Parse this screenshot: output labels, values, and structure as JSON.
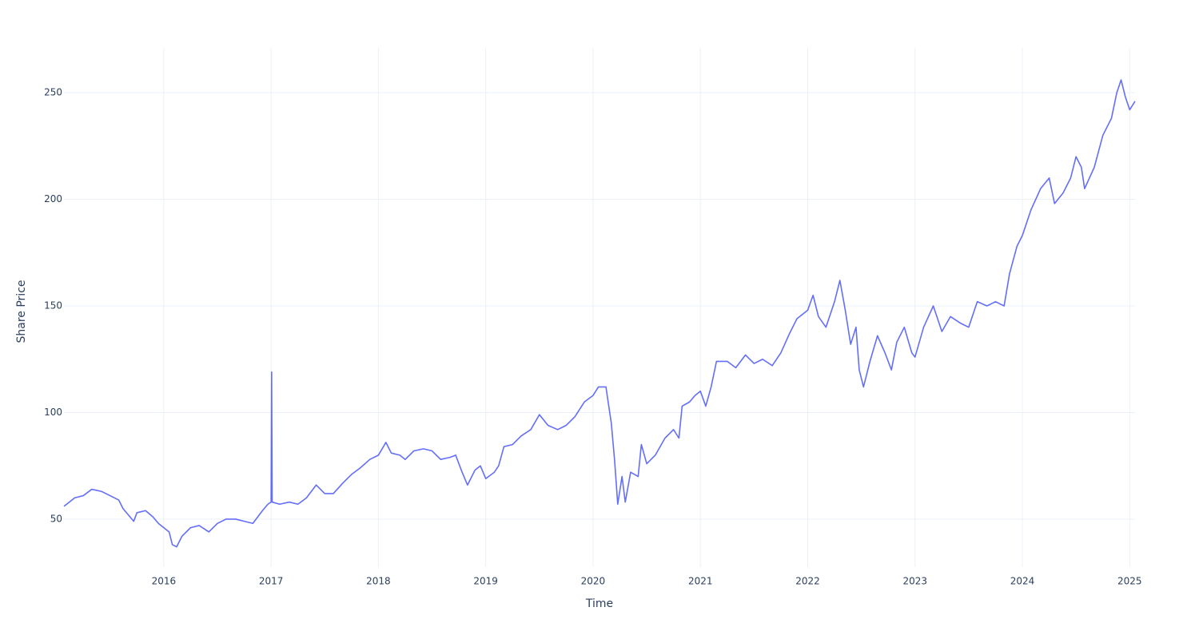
{
  "chart_data": {
    "type": "line",
    "x_label": "Time",
    "y_label": "Share Price",
    "color": "#636efa",
    "grid": true,
    "xlim": [
      2015.07,
      2025.05
    ],
    "xticks": [
      2016,
      2017,
      2018,
      2019,
      2020,
      2021,
      2022,
      2023,
      2024,
      2025
    ],
    "ylim": [
      27.5,
      271
    ],
    "yticks": [
      50,
      100,
      150,
      200,
      250
    ],
    "x": [
      2015.07,
      2015.12,
      2015.17,
      2015.25,
      2015.33,
      2015.42,
      2015.5,
      2015.58,
      2015.62,
      2015.67,
      2015.72,
      2015.75,
      2015.83,
      2015.9,
      2015.95,
      2016.0,
      2016.05,
      2016.08,
      2016.12,
      2016.17,
      2016.25,
      2016.33,
      2016.42,
      2016.5,
      2016.58,
      2016.67,
      2016.75,
      2016.83,
      2016.92,
      2016.97,
      2017.0,
      2017.005,
      2017.01,
      2017.08,
      2017.17,
      2017.25,
      2017.33,
      2017.42,
      2017.5,
      2017.58,
      2017.67,
      2017.75,
      2017.83,
      2017.92,
      2018.0,
      2018.07,
      2018.12,
      2018.2,
      2018.25,
      2018.33,
      2018.42,
      2018.5,
      2018.58,
      2018.67,
      2018.72,
      2018.78,
      2018.83,
      2018.9,
      2018.95,
      2019.0,
      2019.08,
      2019.12,
      2019.17,
      2019.25,
      2019.33,
      2019.42,
      2019.5,
      2019.58,
      2019.67,
      2019.75,
      2019.83,
      2019.92,
      2020.0,
      2020.05,
      2020.12,
      2020.17,
      2020.2,
      2020.23,
      2020.27,
      2020.3,
      2020.35,
      2020.42,
      2020.45,
      2020.5,
      2020.58,
      2020.67,
      2020.75,
      2020.8,
      2020.83,
      2020.9,
      2020.95,
      2021.0,
      2021.05,
      2021.1,
      2021.15,
      2021.25,
      2021.33,
      2021.42,
      2021.5,
      2021.58,
      2021.67,
      2021.75,
      2021.83,
      2021.9,
      2022.0,
      2022.05,
      2022.1,
      2022.17,
      2022.25,
      2022.3,
      2022.35,
      2022.4,
      2022.45,
      2022.48,
      2022.52,
      2022.58,
      2022.65,
      2022.72,
      2022.78,
      2022.83,
      2022.9,
      2022.97,
      2023.0,
      2023.08,
      2023.17,
      2023.25,
      2023.33,
      2023.42,
      2023.5,
      2023.58,
      2023.67,
      2023.75,
      2023.83,
      2023.88,
      2023.95,
      2024.0,
      2024.08,
      2024.17,
      2024.25,
      2024.3,
      2024.38,
      2024.45,
      2024.5,
      2024.55,
      2024.58,
      2024.67,
      2024.75,
      2024.83,
      2024.88,
      2024.92,
      2024.96,
      2025.0,
      2025.05
    ],
    "values": [
      56,
      58,
      60,
      61,
      64,
      63,
      61,
      59,
      55,
      52,
      49,
      53,
      54,
      51,
      48,
      46,
      44,
      38,
      37,
      42,
      46,
      47,
      44,
      48,
      50,
      50,
      49,
      48,
      54,
      57,
      58,
      119,
      58,
      57,
      58,
      57,
      60,
      66,
      62,
      62,
      67,
      71,
      74,
      78,
      80,
      86,
      81,
      80,
      78,
      82,
      83,
      82,
      78,
      79,
      80,
      72,
      66,
      73,
      75,
      69,
      72,
      75,
      84,
      85,
      89,
      92,
      99,
      94,
      92,
      94,
      98,
      105,
      108,
      112,
      112,
      95,
      78,
      57,
      70,
      58,
      72,
      70,
      85,
      76,
      80,
      88,
      92,
      88,
      103,
      105,
      108,
      110,
      103,
      112,
      124,
      124,
      121,
      127,
      123,
      125,
      122,
      128,
      137,
      144,
      148,
      155,
      145,
      140,
      152,
      162,
      148,
      132,
      140,
      120,
      112,
      124,
      136,
      128,
      120,
      133,
      140,
      128,
      126,
      140,
      150,
      138,
      145,
      142,
      140,
      152,
      150,
      152,
      150,
      165,
      178,
      183,
      195,
      205,
      210,
      198,
      203,
      210,
      220,
      215,
      205,
      215,
      230,
      238,
      250,
      256,
      248,
      242,
      246
    ]
  }
}
